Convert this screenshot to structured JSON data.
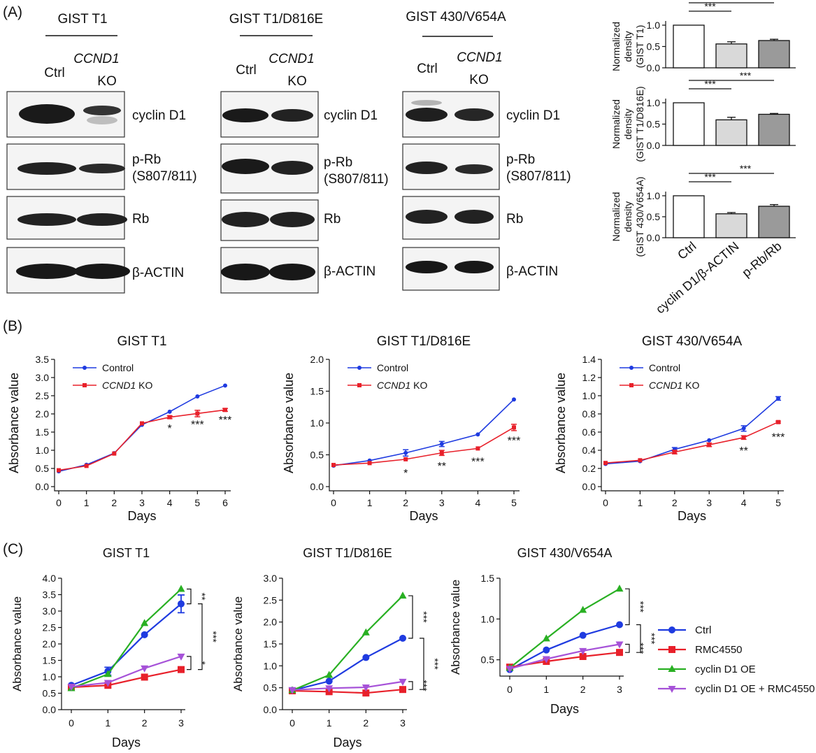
{
  "panel_labels": {
    "a": "(A)",
    "b": "(B)",
    "c": "(C)"
  },
  "blots": [
    {
      "title": "GIST T1",
      "ctrl": "Ctrl",
      "gene": "CCND1",
      "ko": "KO"
    },
    {
      "title": "GIST T1/D816E",
      "ctrl": "Ctrl",
      "gene": "CCND1",
      "ko": "KO"
    },
    {
      "title": "GIST 430/V654A",
      "ctrl": "Ctrl",
      "gene": "CCND1",
      "ko": "KO"
    }
  ],
  "blot_rows": [
    {
      "line1": "cyclin D1",
      "line2": ""
    },
    {
      "line1": "p-Rb",
      "line2": "(S807/811)"
    },
    {
      "line1": "Rb",
      "line2": ""
    },
    {
      "line1": "β-ACTIN",
      "line2": ""
    }
  ],
  "chart_data": [
    {
      "type": "bar",
      "panel": "A",
      "categories": [
        "Ctrl",
        "cyclin D1/β-ACTIN",
        "p-Rb/Rb"
      ],
      "values": [
        1.0,
        0.56,
        0.64
      ],
      "errors": [
        0,
        0.05,
        0.03
      ],
      "ylabel": "Normalized density (GIST T1)",
      "ylim": [
        0,
        1.0
      ],
      "yticks": [
        "0.0",
        "0.5",
        "1.0"
      ],
      "significance": [
        "***",
        "***"
      ],
      "xlabels_shown": false
    },
    {
      "type": "bar",
      "panel": "A",
      "categories": [
        "Ctrl",
        "cyclin D1/β-ACTIN",
        "p-Rb/Rb"
      ],
      "values": [
        1.0,
        0.6,
        0.73
      ],
      "errors": [
        0,
        0.06,
        0.02
      ],
      "ylabel": "Normalized density (GIST T1/D816E)",
      "ylim": [
        0,
        1.0
      ],
      "yticks": [
        "0.0",
        "0.5",
        "1.0"
      ],
      "significance": [
        "***",
        "***"
      ],
      "xlabels_shown": false
    },
    {
      "type": "bar",
      "panel": "A",
      "categories": [
        "Ctrl",
        "cyclin D1/β-ACTIN",
        "p-Rb/Rb"
      ],
      "values": [
        1.0,
        0.57,
        0.75
      ],
      "errors": [
        0,
        0.03,
        0.04
      ],
      "ylabel": "Normalized density (GIST 430/V654A)",
      "ylim": [
        0,
        1.0
      ],
      "yticks": [
        "0.0",
        "0.5",
        "1.0"
      ],
      "significance": [
        "***",
        "***"
      ],
      "xlabels_shown": true
    },
    {
      "type": "line",
      "panel": "B",
      "title": "GIST T1",
      "xlabel": "Days",
      "ylabel": "Absorbance value",
      "x": [
        0,
        1,
        2,
        3,
        4,
        5,
        6
      ],
      "xticks": [
        "0",
        "1",
        "2",
        "3",
        "4",
        "5",
        "6"
      ],
      "ylim": [
        0,
        3.5
      ],
      "yticks": [
        "0.0",
        "0.5",
        "1.0",
        "1.5",
        "2.0",
        "2.5",
        "3.0",
        "3.5"
      ],
      "series": [
        {
          "name": "Control",
          "name_gene": "",
          "values": [
            0.42,
            0.6,
            0.92,
            1.7,
            2.06,
            2.48,
            2.78
          ],
          "errors": [
            0,
            0,
            0,
            0,
            0,
            0,
            0
          ]
        },
        {
          "name": " KO",
          "name_gene": "CCND1",
          "values": [
            0.45,
            0.57,
            0.91,
            1.74,
            1.91,
            2.01,
            2.11
          ],
          "errors": [
            0,
            0,
            0,
            0,
            0.04,
            0.09,
            0.04
          ]
        }
      ],
      "annotations": [
        {
          "x": 4,
          "y": 1.62,
          "text": "*"
        },
        {
          "x": 5,
          "y": 1.72,
          "text": "***"
        },
        {
          "x": 6,
          "y": 1.85,
          "text": "***"
        }
      ]
    },
    {
      "type": "line",
      "panel": "B",
      "title": "GIST T1/D816E",
      "xlabel": "Days",
      "ylabel": "Absorbance value",
      "x": [
        0,
        1,
        2,
        3,
        4,
        5
      ],
      "xticks": [
        "0",
        "1",
        "2",
        "3",
        "4",
        "5"
      ],
      "ylim": [
        0,
        2.0
      ],
      "yticks": [
        "0.0",
        "0.5",
        "1.0",
        "1.5",
        "2.0"
      ],
      "series": [
        {
          "name": "Control",
          "name_gene": "",
          "values": [
            0.33,
            0.41,
            0.53,
            0.67,
            0.82,
            1.37
          ],
          "errors": [
            0,
            0,
            0.05,
            0.04,
            0,
            0
          ]
        },
        {
          "name": " KO",
          "name_gene": "CCND1",
          "values": [
            0.34,
            0.37,
            0.43,
            0.53,
            0.6,
            0.93
          ],
          "errors": [
            0,
            0,
            0,
            0.04,
            0,
            0.05
          ]
        }
      ],
      "annotations": [
        {
          "x": 2,
          "y": 0.22,
          "text": "*"
        },
        {
          "x": 3,
          "y": 0.33,
          "text": "**"
        },
        {
          "x": 4,
          "y": 0.4,
          "text": "***"
        },
        {
          "x": 5,
          "y": 0.73,
          "text": "***"
        }
      ]
    },
    {
      "type": "line",
      "panel": "B",
      "title": "GIST 430/V654A",
      "xlabel": "Days",
      "ylabel": "Absorbance value",
      "x": [
        0,
        1,
        2,
        3,
        4,
        5
      ],
      "xticks": [
        "0",
        "1",
        "2",
        "3",
        "4",
        "5"
      ],
      "ylim": [
        0,
        1.4
      ],
      "yticks": [
        "0.0",
        "0.2",
        "0.4",
        "0.6",
        "0.8",
        "1.0",
        "1.2",
        "1.4"
      ],
      "series": [
        {
          "name": "Control",
          "name_gene": "",
          "values": [
            0.25,
            0.28,
            0.41,
            0.51,
            0.64,
            0.97
          ],
          "errors": [
            0,
            0,
            0.02,
            0,
            0.03,
            0.02
          ]
        },
        {
          "name": " KO",
          "name_gene": "CCND1",
          "values": [
            0.26,
            0.29,
            0.38,
            0.46,
            0.54,
            0.71
          ],
          "errors": [
            0,
            0,
            0.02,
            0.02,
            0.02,
            0.01
          ]
        }
      ],
      "annotations": [
        {
          "x": 4,
          "y": 0.4,
          "text": "**"
        },
        {
          "x": 5,
          "y": 0.55,
          "text": "***"
        }
      ]
    },
    {
      "type": "line",
      "panel": "C",
      "title": "GIST T1",
      "xlabel": "Days",
      "ylabel": "Absorbance value",
      "x": [
        0,
        1,
        2,
        3
      ],
      "xticks": [
        "0",
        "1",
        "2",
        "3"
      ],
      "ylim": [
        0,
        4.0
      ],
      "yticks": [
        "0.0",
        "0.5",
        "1.0",
        "1.5",
        "2.0",
        "2.5",
        "3.0",
        "3.5",
        "4.0"
      ],
      "series": [
        {
          "name": "Ctrl",
          "values": [
            0.74,
            1.17,
            2.28,
            3.22
          ],
          "errors": [
            0,
            0.12,
            0,
            0.27
          ]
        },
        {
          "name": "RMC4550",
          "values": [
            0.68,
            0.74,
            0.99,
            1.22
          ],
          "errors": [
            0,
            0,
            0,
            0
          ]
        },
        {
          "name": "cyclin D1 OE",
          "values": [
            0.65,
            1.08,
            2.63,
            3.67
          ],
          "errors": [
            0,
            0,
            0,
            0
          ]
        },
        {
          "name": "cyclin D1 OE + RMC4550",
          "values": [
            0.7,
            0.82,
            1.26,
            1.62
          ],
          "errors": [
            0,
            0,
            0,
            0
          ]
        }
      ],
      "brackets": [
        {
          "y1": 3.67,
          "y2": 3.22,
          "text": "**"
        },
        {
          "y1": 3.22,
          "y2": 1.22,
          "text": "***"
        },
        {
          "y1": 1.62,
          "y2": 1.22,
          "text": "*"
        }
      ]
    },
    {
      "type": "line",
      "panel": "C",
      "title": "GIST T1/D816E",
      "xlabel": "Days",
      "ylabel": "Absorbance value",
      "x": [
        0,
        1,
        2,
        3
      ],
      "xticks": [
        "0",
        "1",
        "2",
        "3"
      ],
      "ylim": [
        0,
        3.0
      ],
      "yticks": [
        "0.0",
        "0.5",
        "1.0",
        "1.5",
        "2.0",
        "2.5",
        "3.0"
      ],
      "series": [
        {
          "name": "Ctrl",
          "values": [
            0.44,
            0.65,
            1.19,
            1.63
          ],
          "errors": [
            0,
            0,
            0,
            0
          ]
        },
        {
          "name": "RMC4550",
          "values": [
            0.43,
            0.41,
            0.38,
            0.46
          ],
          "errors": [
            0,
            0,
            0,
            0
          ]
        },
        {
          "name": "cyclin D1 OE",
          "values": [
            0.44,
            0.79,
            1.76,
            2.6
          ],
          "errors": [
            0,
            0,
            0,
            0
          ]
        },
        {
          "name": "cyclin D1 OE + RMC4550",
          "values": [
            0.45,
            0.49,
            0.51,
            0.64
          ],
          "errors": [
            0,
            0,
            0,
            0
          ]
        }
      ],
      "brackets": [
        {
          "y1": 2.6,
          "y2": 1.63,
          "text": "***"
        },
        {
          "y1": 1.63,
          "y2": 0.46,
          "text": "***"
        },
        {
          "y1": 0.64,
          "y2": 0.46,
          "text": "***"
        }
      ]
    },
    {
      "type": "line",
      "panel": "C",
      "title": "GIST 430/V654A",
      "xlabel": "Days",
      "ylabel": "Absorbance value",
      "x": [
        0,
        1,
        2,
        3
      ],
      "xticks": [
        "0",
        "1",
        "2",
        "3"
      ],
      "ylim": [
        0.3,
        1.5
      ],
      "yticks": [
        "0.5",
        "1.0",
        "1.5"
      ],
      "series": [
        {
          "name": "Ctrl",
          "values": [
            0.38,
            0.62,
            0.8,
            0.93
          ],
          "errors": [
            0,
            0,
            0,
            0
          ]
        },
        {
          "name": "RMC4550",
          "values": [
            0.41,
            0.48,
            0.54,
            0.59
          ],
          "errors": [
            0,
            0,
            0,
            0
          ]
        },
        {
          "name": "cyclin D1 OE",
          "values": [
            0.4,
            0.76,
            1.11,
            1.37
          ],
          "errors": [
            0,
            0,
            0,
            0
          ]
        },
        {
          "name": "cyclin D1 OE + RMC4550",
          "values": [
            0.39,
            0.51,
            0.61,
            0.69
          ],
          "errors": [
            0,
            0,
            0,
            0
          ]
        }
      ],
      "brackets": [
        {
          "y1": 1.37,
          "y2": 0.93,
          "text": "***"
        },
        {
          "y1": 0.93,
          "y2": 0.59,
          "text": "***"
        },
        {
          "y1": 0.69,
          "y2": 0.59,
          "text": "***"
        }
      ]
    }
  ],
  "legend_c": [
    {
      "name": "Ctrl",
      "color": "#1f3be0",
      "marker": "circle"
    },
    {
      "name": "RMC4550",
      "color": "#e8202a",
      "marker": "square"
    },
    {
      "name": "cyclin D1 OE",
      "color": "#29b023",
      "marker": "triangle"
    },
    {
      "name": "cyclin D1 OE + RMC4550",
      "color": "#a652d8",
      "marker": "triangle-down"
    }
  ],
  "colors": {
    "control": "#1f3be0",
    "ko": "#e8202a",
    "bar_ctrl": "#ffffff",
    "bar_cyc": "#d9d9d9",
    "bar_prb": "#9a9a9a"
  }
}
